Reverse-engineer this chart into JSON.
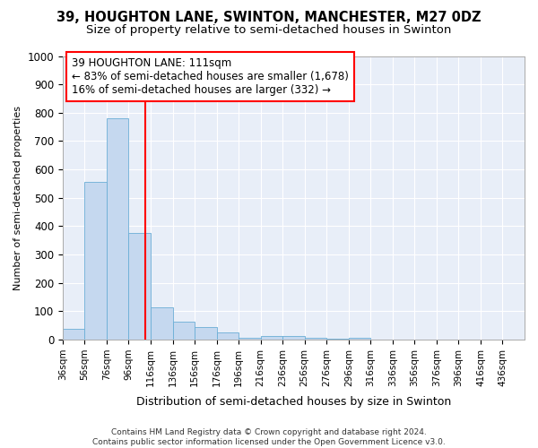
{
  "title": "39, HOUGHTON LANE, SWINTON, MANCHESTER, M27 0DZ",
  "subtitle": "Size of property relative to semi-detached houses in Swinton",
  "xlabel": "Distribution of semi-detached houses by size in Swinton",
  "ylabel": "Number of semi-detached properties",
  "bin_edges": [
    36,
    56,
    76,
    96,
    116,
    136,
    156,
    176,
    196,
    216,
    236,
    256,
    276,
    296,
    316,
    336,
    356,
    376,
    396,
    416,
    436,
    456
  ],
  "bar_heights": [
    38,
    555,
    780,
    375,
    115,
    62,
    45,
    25,
    8,
    12,
    13,
    5,
    2,
    8,
    0,
    0,
    0,
    0,
    0,
    0,
    0
  ],
  "bar_color": "#c5d8ef",
  "bar_edge_color": "#6baed6",
  "property_size": 111,
  "vline_color": "red",
  "annotation_text": "39 HOUGHTON LANE: 111sqm\n← 83% of semi-detached houses are smaller (1,678)\n16% of semi-detached houses are larger (332) →",
  "annotation_box_color": "white",
  "annotation_box_edge": "red",
  "ylim": [
    0,
    1000
  ],
  "yticks": [
    0,
    100,
    200,
    300,
    400,
    500,
    600,
    700,
    800,
    900,
    1000
  ],
  "background_color": "#ffffff",
  "plot_bg_color": "#e8eef8",
  "grid_color": "#ffffff",
  "title_fontsize": 10.5,
  "subtitle_fontsize": 9.5,
  "footer_text": "Contains HM Land Registry data © Crown copyright and database right 2024.\nContains public sector information licensed under the Open Government Licence v3.0."
}
